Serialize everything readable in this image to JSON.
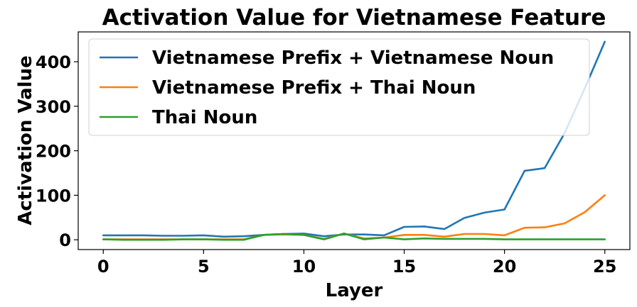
{
  "chart_data": {
    "type": "line",
    "title": "Activation Value for Vietnamese Feature",
    "xlabel": "Layer",
    "ylabel": "Activation Value",
    "xlim": [
      -1.25,
      26.25
    ],
    "ylim": [
      -22,
      467
    ],
    "xticks": [
      0,
      5,
      10,
      15,
      20,
      25
    ],
    "yticks": [
      0,
      100,
      200,
      300,
      400
    ],
    "grid": false,
    "legend_position": "top-left",
    "x": [
      0,
      1,
      2,
      3,
      4,
      5,
      6,
      7,
      8,
      9,
      10,
      11,
      12,
      13,
      14,
      15,
      16,
      17,
      18,
      19,
      20,
      21,
      22,
      23,
      24,
      25
    ],
    "series": [
      {
        "name": "Vietnamese Prefix + Vietnamese Noun",
        "color": "#1f77b4",
        "values": [
          10,
          10,
          10,
          9,
          9,
          10,
          7,
          8,
          11,
          13,
          14,
          8,
          12,
          12,
          10,
          29,
          30,
          24,
          49,
          61,
          68,
          155,
          161,
          240,
          340,
          445
        ]
      },
      {
        "name": "Vietnamese Prefix + Thai Noun",
        "color": "#ff7f0e",
        "values": [
          1,
          1,
          1,
          1,
          1,
          1,
          1,
          1,
          11,
          12,
          11,
          2,
          14,
          3,
          5,
          11,
          11,
          7,
          13,
          13,
          10,
          27,
          28,
          37,
          62,
          100
        ]
      },
      {
        "name": "Thai Noun",
        "color": "#2ca02c",
        "values": [
          1,
          0,
          0,
          0,
          1,
          1,
          0,
          0,
          11,
          13,
          11,
          1,
          14,
          1,
          5,
          1,
          3,
          2,
          2,
          2,
          1,
          1,
          1,
          1,
          1,
          1
        ]
      }
    ]
  }
}
